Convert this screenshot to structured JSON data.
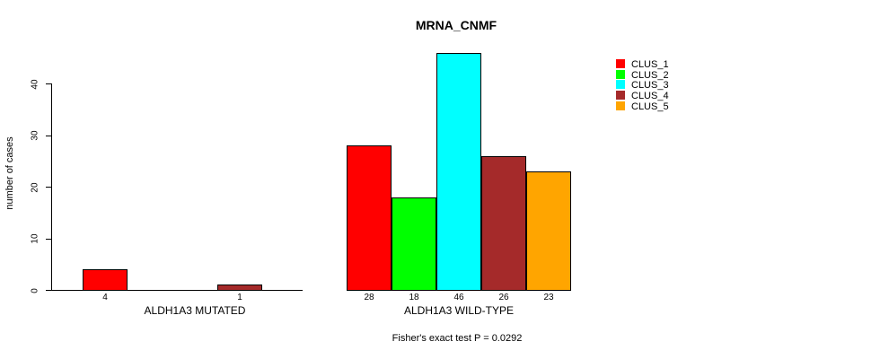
{
  "chart_data": {
    "type": "bar",
    "title": "MRNA_CNMF",
    "ylabel": "number of cases",
    "xlabel": "",
    "annotation": "Fisher's exact test P = 0.0292",
    "categories": [
      "ALDH1A3 MUTATED",
      "ALDH1A3 WILD-TYPE"
    ],
    "series": [
      {
        "name": "CLUS_1",
        "color": "#ff0000",
        "values": [
          4,
          28
        ]
      },
      {
        "name": "CLUS_2",
        "color": "#00ff00",
        "values": [
          0,
          18
        ]
      },
      {
        "name": "CLUS_3",
        "color": "#00ffff",
        "values": [
          0,
          46
        ]
      },
      {
        "name": "CLUS_4",
        "color": "#a52a2a",
        "values": [
          1,
          26
        ]
      },
      {
        "name": "CLUS_5",
        "color": "#ffa500",
        "values": [
          0,
          23
        ]
      }
    ],
    "yticks": [
      0,
      10,
      20,
      30,
      40
    ],
    "ylim": [
      0,
      46
    ],
    "grid": false,
    "legend_position": "top-right",
    "value_labels_shown": "nonzero bars only",
    "bar_border_color": "#000000",
    "text_color": "#000000",
    "background_color": "#ffffff"
  }
}
